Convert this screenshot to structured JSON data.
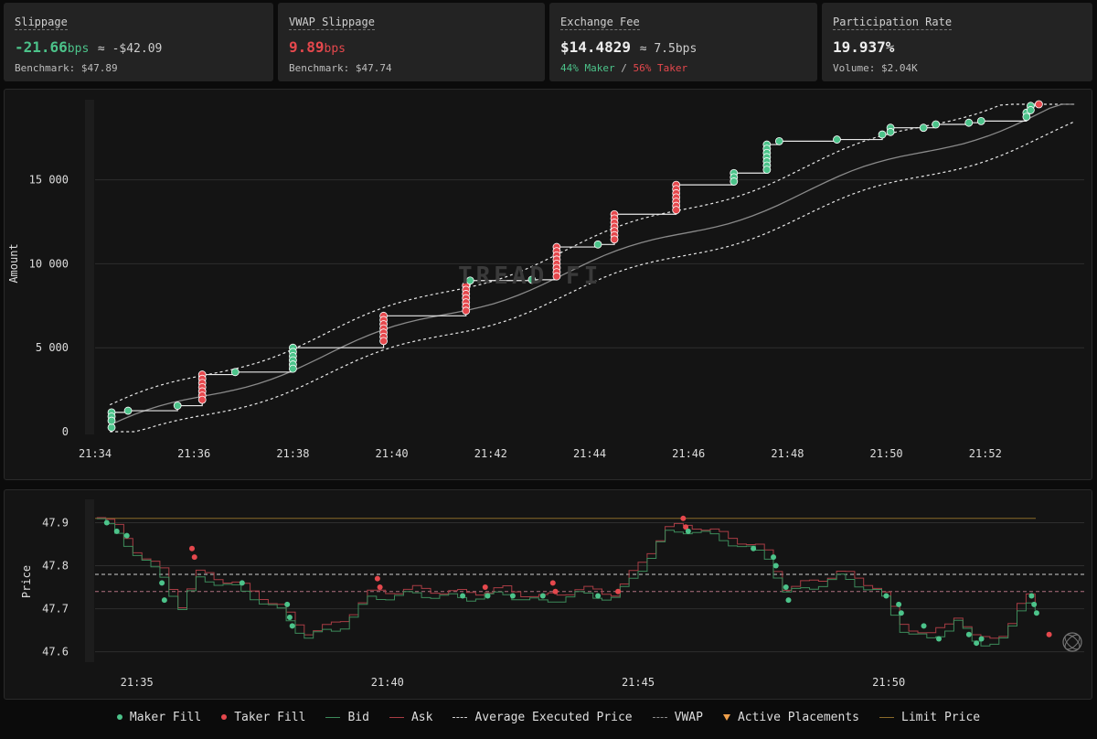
{
  "cards": [
    {
      "title": "Slippage",
      "value": "-21.66",
      "value_unit": "bps",
      "approx": "≈ -$42.09",
      "sub": "Benchmark: $47.89"
    },
    {
      "title": "VWAP Slippage",
      "value": "9.89",
      "value_unit": "bps",
      "sub": "Benchmark: $47.74"
    },
    {
      "title": "Exchange Fee",
      "value": "$14.4829",
      "approx": "≈ 7.5bps",
      "sub_maker": "44% Maker",
      "sub_sep": " / ",
      "sub_taker": "56% Taker"
    },
    {
      "title": "Participation Rate",
      "value": "19.937%",
      "sub": "Volume: $2.04K"
    }
  ],
  "colors": {
    "maker": "#4cc38a",
    "taker": "#e5484d",
    "bid": "#3c8a5a",
    "ask": "#a83c44",
    "limit": "#8a6a2a",
    "active": "#f0a04b"
  },
  "watermark": "TREAD FI",
  "chart_data": [
    {
      "type": "line",
      "ylabel": "Amount",
      "x_ticks": [
        "21:34",
        "21:36",
        "21:38",
        "21:40",
        "21:42",
        "21:44",
        "21:46",
        "21:48",
        "21:50",
        "21:52"
      ],
      "y_ticks": [
        "0",
        "5 000",
        "10 000",
        "15 000"
      ],
      "x_minutes_range": [
        34,
        54
      ],
      "ylim": [
        0,
        19500
      ],
      "cumulative_fills": [
        {
          "t": "21:34:20",
          "y": 250
        },
        {
          "t": "21:34:20",
          "y": 1150
        },
        {
          "t": "21:34:40",
          "y": 1250
        },
        {
          "t": "21:35:40",
          "y": 1550
        },
        {
          "t": "21:36:10",
          "y": 3400
        },
        {
          "t": "21:36:50",
          "y": 3550
        },
        {
          "t": "21:38:00",
          "y": 5000
        },
        {
          "t": "21:39:50",
          "y": 6900
        },
        {
          "t": "21:41:30",
          "y": 8700
        },
        {
          "t": "21:41:35",
          "y": 9000
        },
        {
          "t": "21:42:50",
          "y": 9050
        },
        {
          "t": "21:43:20",
          "y": 11000
        },
        {
          "t": "21:44:10",
          "y": 11150
        },
        {
          "t": "21:44:30",
          "y": 12950
        },
        {
          "t": "21:45:45",
          "y": 14700
        },
        {
          "t": "21:46:55",
          "y": 15400
        },
        {
          "t": "21:47:35",
          "y": 17100
        },
        {
          "t": "21:47:50",
          "y": 17300
        },
        {
          "t": "21:49:00",
          "y": 17400
        },
        {
          "t": "21:49:55",
          "y": 17700
        },
        {
          "t": "21:50:05",
          "y": 18100
        },
        {
          "t": "21:50:45",
          "y": 18100
        },
        {
          "t": "21:51:00",
          "y": 18300
        },
        {
          "t": "21:51:40",
          "y": 18400
        },
        {
          "t": "21:51:55",
          "y": 18500
        },
        {
          "t": "21:52:50",
          "y": 19000
        },
        {
          "t": "21:52:55",
          "y": 19400
        },
        {
          "t": "21:53:05",
          "y": 19500
        }
      ]
    },
    {
      "type": "line",
      "ylabel": "Price",
      "x_ticks": [
        "21:35",
        "21:40",
        "21:45",
        "21:50"
      ],
      "y_ticks": [
        "47.6",
        "47.7",
        "47.8",
        "47.9"
      ],
      "ylim": [
        47.58,
        47.95
      ],
      "average_executed_price": 47.78,
      "vwap": 47.74,
      "limit_price": 47.91
    }
  ],
  "legend": [
    {
      "label": "Maker Fill",
      "kind": "dot-green"
    },
    {
      "label": "Taker Fill",
      "kind": "dot-red"
    },
    {
      "label": "Bid",
      "kind": "line-green"
    },
    {
      "label": "Ask",
      "kind": "line-red"
    },
    {
      "label": "Average Executed Price",
      "kind": "dash-white"
    },
    {
      "label": "VWAP",
      "kind": "dash-grey"
    },
    {
      "label": "Active Placements",
      "kind": "triangle"
    },
    {
      "label": "Limit Price",
      "kind": "line-gold"
    }
  ]
}
